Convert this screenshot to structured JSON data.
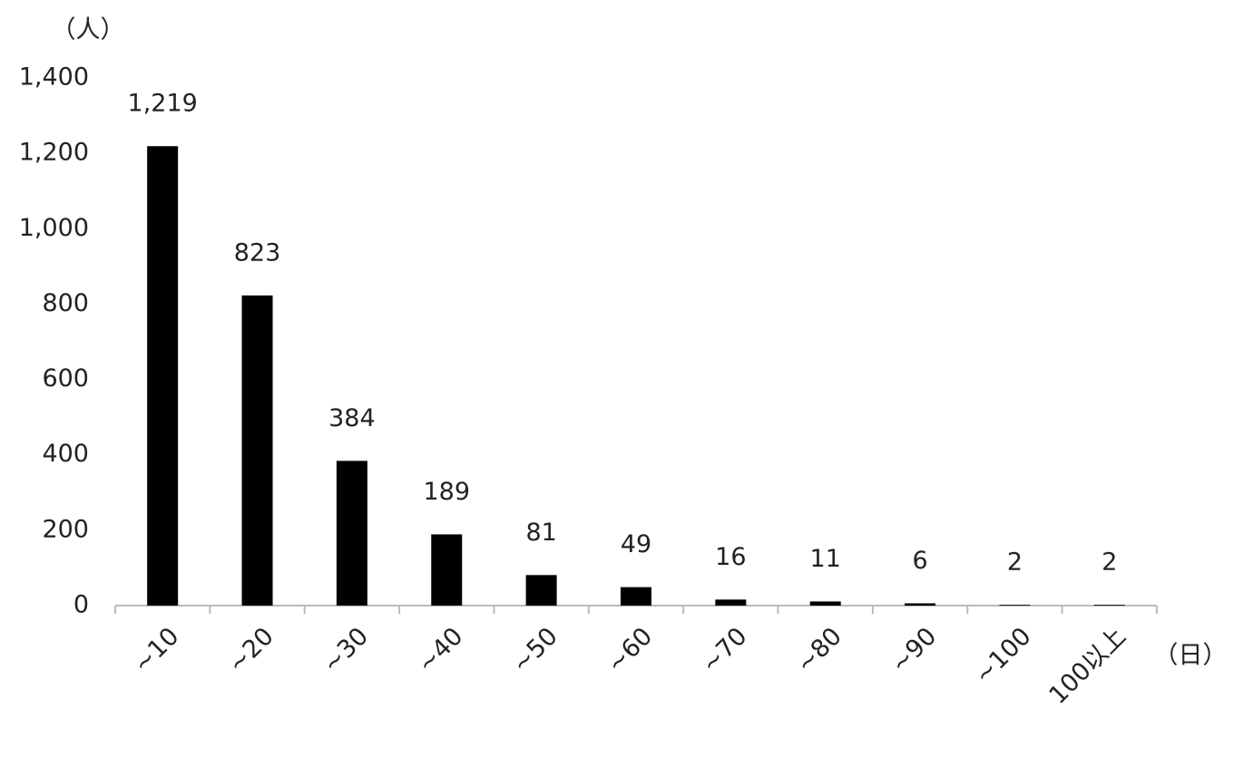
{
  "chart_data": {
    "type": "bar",
    "y_axis_label": "（人）",
    "x_axis_label": "（日）",
    "categories": [
      "~10",
      "~20",
      "~30",
      "~40",
      "~50",
      "~60",
      "~70",
      "~80",
      "~90",
      "~100",
      "100以上"
    ],
    "values": [
      1219,
      823,
      384,
      189,
      81,
      49,
      16,
      11,
      6,
      2,
      2
    ],
    "value_labels": [
      "1,219",
      "823",
      "384",
      "189",
      "81",
      "49",
      "16",
      "11",
      "6",
      "2",
      "2"
    ],
    "color": "#000000",
    "ylim": [
      0,
      1400
    ],
    "yticks": [
      0,
      200,
      400,
      600,
      800,
      {
        "value": 1000,
        "label": "1,000"
      },
      {
        "value": 1200,
        "label": "1,200"
      },
      {
        "value": 1400,
        "label": "1,400"
      }
    ],
    "grid": false
  }
}
